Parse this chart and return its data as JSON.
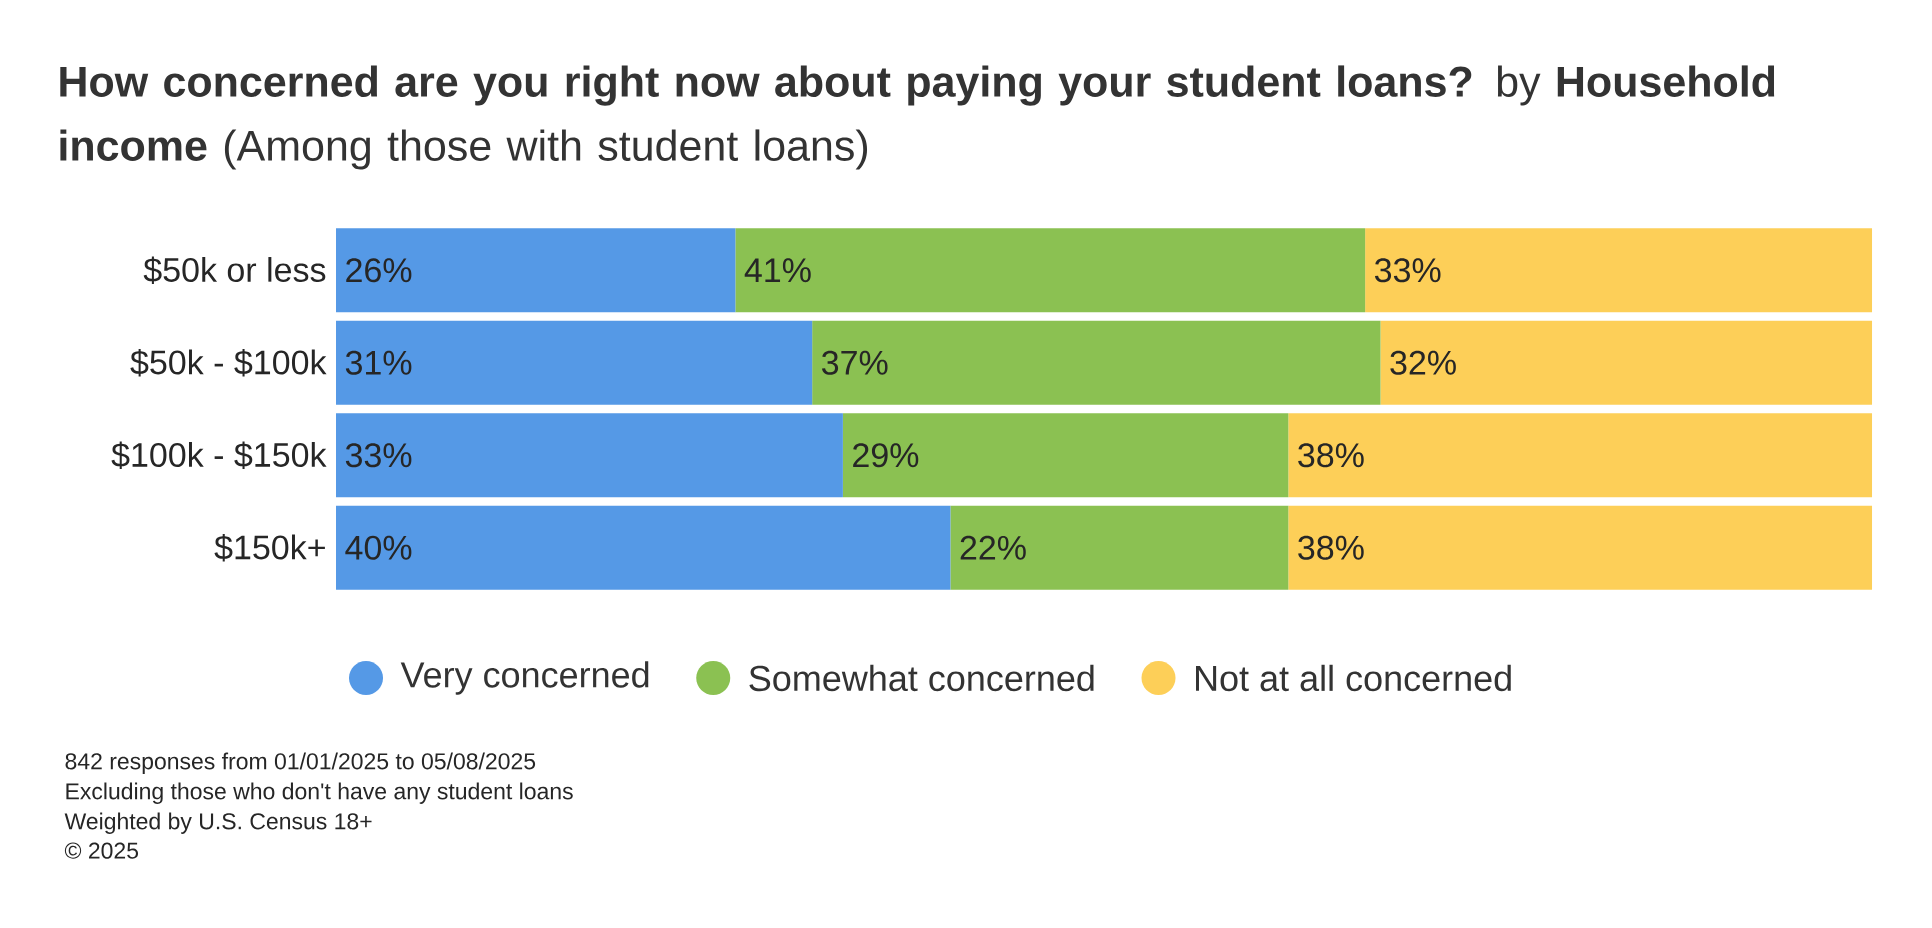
{
  "chart_data": {
    "type": "bar",
    "orientation": "horizontal",
    "stacked": true,
    "title": "**How concerned are you right now about paying your student loans?** by **Household income** (Among those with student loans)",
    "categories": [
      "$50k or less",
      "$50k - $100k",
      "$100k - $150k",
      "$150k+"
    ],
    "series": [
      {
        "name": "Very concerned",
        "color": "#5599e6",
        "values": [
          26,
          31,
          33,
          40
        ],
        "value_labels": [
          "26%",
          "31%",
          "33%",
          "40%"
        ]
      },
      {
        "name": "Somewhat concerned",
        "color": "#8bc152",
        "values": [
          41,
          37,
          29,
          22
        ],
        "value_labels": [
          "41%",
          "37%",
          "29%",
          "22%"
        ]
      },
      {
        "name": "Not at all concerned",
        "color": "#fdcf58",
        "values": [
          33,
          32,
          38,
          38
        ],
        "value_labels": [
          "33%",
          "32%",
          "38%",
          "38%"
        ]
      }
    ],
    "legend": "bottom",
    "annotations": [
      "842 responses from 01/01/2025 to 05/08/2025",
      "Excluding those who don't have any student loans",
      "Weighted by U.S. Census 18+",
      "© 2025"
    ]
  }
}
